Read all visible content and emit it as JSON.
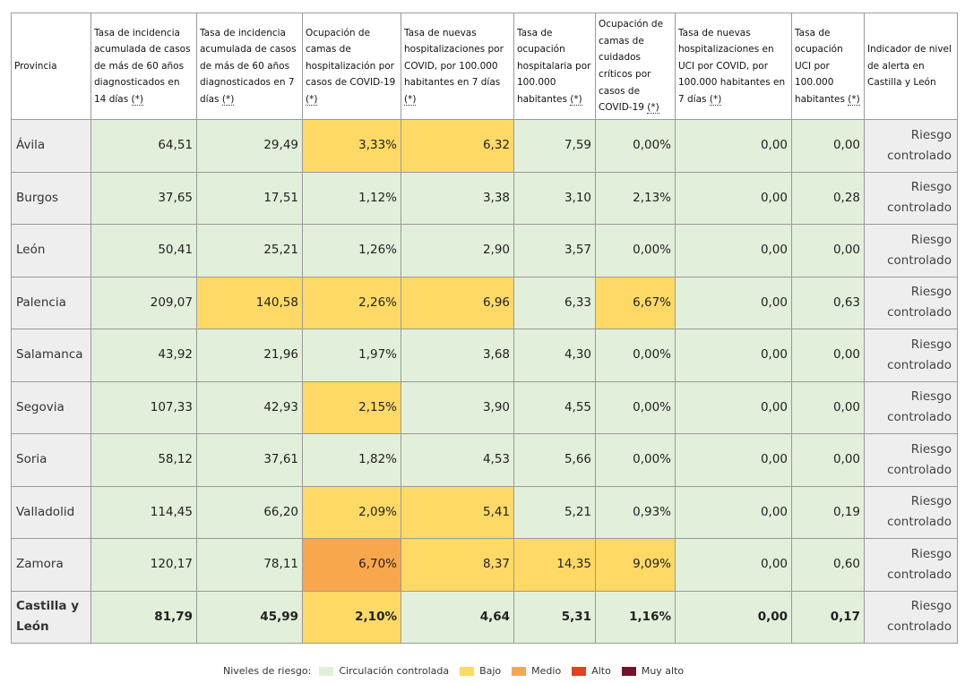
{
  "table": {
    "headers": [
      "Provincia",
      "Tasa de incidencia acumulada de casos de más de 60 años diagnosticados en 14 días",
      "Tasa de incidencia acumulada de casos de más de 60 años diagnosticados en 7 días",
      "Ocupación de camas de hospitalización por casos de COVID-19",
      "Tasa de nuevas hospitalizaciones por COVID, por 100.000 habitantes en 7 días",
      "Tasa de ocupación hospitalaria por 100.000 habitantes",
      "Ocupación de camas de cuidados críticos por casos de COVID-19",
      "Tasa de nuevas hospitalizaciones en UCI por COVID, por 100.000 habitantes en 7 días",
      "Tasa de ocupación UCI por 100.000 habitantes",
      "Indicador de nivel de alerta en Castilla y León"
    ],
    "header_footnote": [
      false,
      true,
      true,
      true,
      true,
      true,
      true,
      true,
      true,
      false
    ],
    "footnote_mark": "(*)",
    "rows": [
      {
        "cells": [
          "Ávila",
          "64,51",
          "29,49",
          "3,33%",
          "6,32",
          "7,59",
          "0,00%",
          "0,00",
          "0,00",
          "Riesgo controlado"
        ],
        "levels": [
          "",
          "g",
          "g",
          "y",
          "y",
          "g",
          "g",
          "g",
          "g",
          ""
        ]
      },
      {
        "cells": [
          "Burgos",
          "37,65",
          "17,51",
          "1,12%",
          "3,38",
          "3,10",
          "2,13%",
          "0,00",
          "0,28",
          "Riesgo controlado"
        ],
        "levels": [
          "",
          "g",
          "g",
          "g",
          "g",
          "g",
          "g",
          "g",
          "g",
          ""
        ]
      },
      {
        "cells": [
          "León",
          "50,41",
          "25,21",
          "1,26%",
          "2,90",
          "3,57",
          "0,00%",
          "0,00",
          "0,00",
          "Riesgo controlado"
        ],
        "levels": [
          "",
          "g",
          "g",
          "g",
          "g",
          "g",
          "g",
          "g",
          "g",
          ""
        ]
      },
      {
        "cells": [
          "Palencia",
          "209,07",
          "140,58",
          "2,26%",
          "6,96",
          "6,33",
          "6,67%",
          "0,00",
          "0,63",
          "Riesgo controlado"
        ],
        "levels": [
          "",
          "g",
          "y",
          "y",
          "y",
          "g",
          "y",
          "g",
          "g",
          ""
        ]
      },
      {
        "cells": [
          "Salamanca",
          "43,92",
          "21,96",
          "1,97%",
          "3,68",
          "4,30",
          "0,00%",
          "0,00",
          "0,00",
          "Riesgo controlado"
        ],
        "levels": [
          "",
          "g",
          "g",
          "g",
          "g",
          "g",
          "g",
          "g",
          "g",
          ""
        ]
      },
      {
        "cells": [
          "Segovia",
          "107,33",
          "42,93",
          "2,15%",
          "3,90",
          "4,55",
          "0,00%",
          "0,00",
          "0,00",
          "Riesgo controlado"
        ],
        "levels": [
          "",
          "g",
          "g",
          "y",
          "g",
          "g",
          "g",
          "g",
          "g",
          ""
        ]
      },
      {
        "cells": [
          "Soria",
          "58,12",
          "37,61",
          "1,82%",
          "4,53",
          "5,66",
          "0,00%",
          "0,00",
          "0,00",
          "Riesgo controlado"
        ],
        "levels": [
          "",
          "g",
          "g",
          "g",
          "g",
          "g",
          "g",
          "g",
          "g",
          ""
        ]
      },
      {
        "cells": [
          "Valladolid",
          "114,45",
          "66,20",
          "2,09%",
          "5,41",
          "5,21",
          "0,93%",
          "0,00",
          "0,19",
          "Riesgo controlado"
        ],
        "levels": [
          "",
          "g",
          "g",
          "y",
          "y",
          "g",
          "g",
          "g",
          "g",
          ""
        ]
      },
      {
        "cells": [
          "Zamora",
          "120,17",
          "78,11",
          "6,70%",
          "8,37",
          "14,35",
          "9,09%",
          "0,00",
          "0,60",
          "Riesgo controlado"
        ],
        "levels": [
          "",
          "g",
          "g",
          "o",
          "y",
          "y",
          "y",
          "g",
          "g",
          ""
        ]
      },
      {
        "cells": [
          "Castilla y León",
          "81,79",
          "45,99",
          "2,10%",
          "4,64",
          "5,31",
          "1,16%",
          "0,00",
          "0,17",
          "Riesgo controlado"
        ],
        "levels": [
          "",
          "g",
          "g",
          "y",
          "g",
          "g",
          "g",
          "g",
          "g",
          ""
        ],
        "total": true
      }
    ]
  },
  "level_colors": {
    "g": "#e2efda",
    "y": "#ffd966",
    "o": "#f8a74c"
  },
  "legend": {
    "label": "Niveles de riesgo:",
    "items": [
      {
        "label": "Circulación controlada",
        "color": "#e2efda"
      },
      {
        "label": "Bajo",
        "color": "#ffd966"
      },
      {
        "label": "Medio",
        "color": "#f8a74c"
      },
      {
        "label": "Alto",
        "color": "#e8401c"
      },
      {
        "label": "Muy alto",
        "color": "#74112b"
      }
    ]
  }
}
